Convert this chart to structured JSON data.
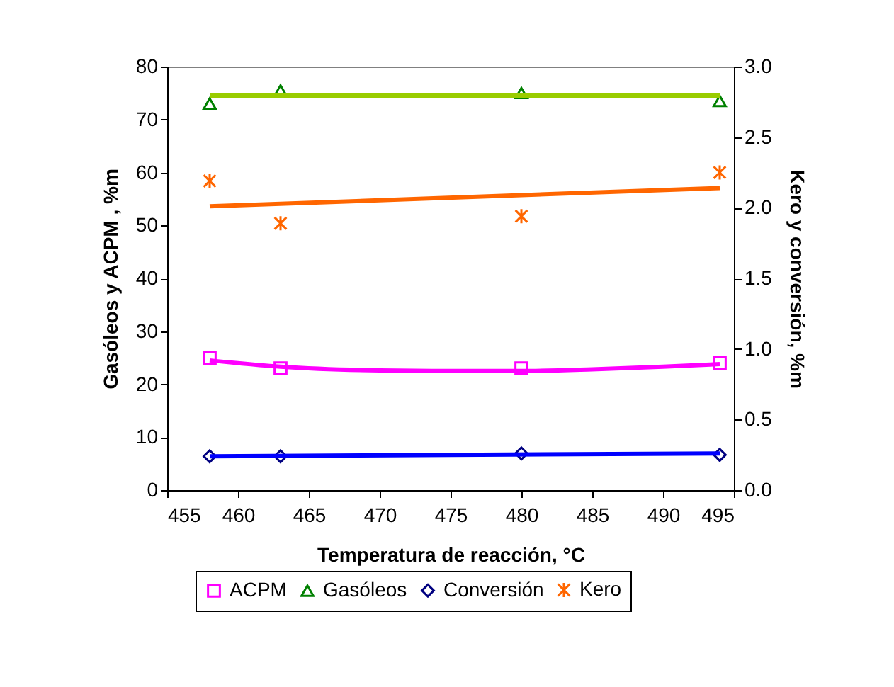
{
  "chart_data": {
    "type": "scatter",
    "xlabel": "Temperatura de reacción, °C",
    "ylabel": "Gasóleos y ACPM , %m",
    "y2label": "Kero y conversión, %m",
    "xlim": [
      455,
      495
    ],
    "xticks": [
      455,
      460,
      465,
      470,
      475,
      480,
      485,
      490,
      495
    ],
    "ylim": [
      0,
      80
    ],
    "yticks": [
      0,
      10,
      20,
      30,
      40,
      50,
      60,
      70,
      80
    ],
    "y2lim": [
      0,
      3
    ],
    "y2ticks": [
      {
        "value": 0,
        "label": "0.0"
      },
      0.5,
      {
        "value": 1,
        "label": "1.0"
      },
      1.5,
      {
        "value": 2,
        "label": "2.0"
      },
      2.5,
      {
        "value": 3,
        "label": "3.0"
      }
    ],
    "grid": false,
    "legend": "bottom",
    "series": [
      {
        "name": "ACPM",
        "marker": "square",
        "color": "#ff00ff",
        "x": [
          458,
          463,
          480,
          494
        ],
        "values": [
          25,
          23,
          23,
          24
        ]
      },
      {
        "name": "Gasóleos",
        "marker": "triangle",
        "color": "#008000",
        "x": [
          458,
          463,
          480,
          494
        ],
        "values": [
          73,
          75.5,
          75,
          73.5
        ]
      },
      {
        "name": "Conversión",
        "marker": "diamond",
        "color": "#000080",
        "axis": "y2",
        "x": [
          458,
          463,
          480,
          494
        ],
        "values": [
          0.24,
          0.24,
          0.26,
          0.25
        ]
      },
      {
        "name": "Kero",
        "marker": "cross",
        "color": "#ff6600",
        "axis": "y2",
        "x": [
          458,
          463,
          480,
          494
        ],
        "values": [
          2.19,
          1.89,
          1.94,
          2.25
        ]
      },
      {
        "type": "line",
        "color": "#ff00ff",
        "x": [
          458,
          463,
          470,
          475,
          480,
          485,
          490,
          494
        ],
        "values": [
          24.5,
          23.3,
          22.6,
          22.5,
          22.5,
          22.8,
          23.3,
          23.8
        ]
      },
      {
        "type": "line",
        "color": "#99cc00",
        "x": [
          458,
          494
        ],
        "values": [
          74.5,
          74.5
        ]
      },
      {
        "type": "line",
        "color": "#0000ff",
        "axis": "y2",
        "x": [
          458,
          494
        ],
        "values": [
          0.24,
          0.26
        ]
      },
      {
        "type": "line",
        "color": "#ff6600",
        "axis": "y2",
        "x": [
          458,
          494
        ],
        "values": [
          2.01,
          2.14
        ]
      }
    ]
  }
}
